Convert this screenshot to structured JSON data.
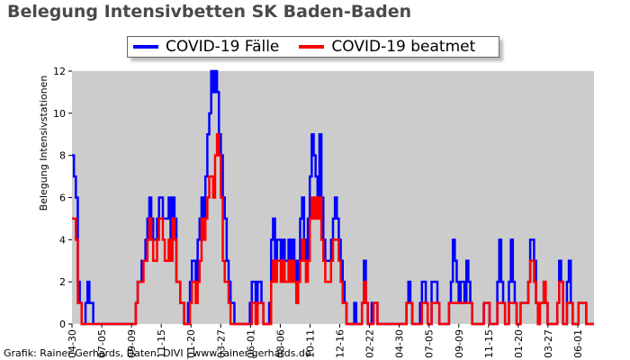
{
  "chart_data": {
    "type": "line",
    "title": "Belegung Intensivbetten SK Baden-Baden",
    "ylabel": "Belegung Intensivstationen",
    "xlabel": "",
    "ylim": [
      0,
      12
    ],
    "yticks": [
      0,
      2,
      4,
      6,
      8,
      10,
      12
    ],
    "xticks": [
      "04-30",
      "07-05",
      "09-09",
      "11-15",
      "01-20",
      "03-27",
      "06-01",
      "08-06",
      "10-11",
      "12-16",
      "02-22",
      "04-30",
      "07-05",
      "09-09",
      "11-15",
      "01-20",
      "03-27",
      "06-01"
    ],
    "grid": false,
    "background": "#cccccc",
    "legend_position": "top-center",
    "series": [
      {
        "name": "COVID-19 Fälle",
        "color": "#0000ff",
        "values": [
          8,
          7,
          6,
          2,
          1,
          0,
          0,
          1,
          2,
          1,
          1,
          0,
          0,
          0,
          0,
          0,
          0,
          0,
          0,
          0,
          0,
          0,
          0,
          0,
          0,
          0,
          0,
          0,
          0,
          0,
          0,
          0,
          0,
          1,
          2,
          2,
          3,
          3,
          4,
          5,
          6,
          5,
          4,
          4,
          5,
          6,
          6,
          5,
          5,
          5,
          6,
          4,
          6,
          5,
          2,
          2,
          1,
          1,
          0,
          0,
          1,
          2,
          3,
          3,
          2,
          4,
          5,
          6,
          5,
          7,
          9,
          10,
          12,
          11,
          12,
          11,
          9,
          8,
          6,
          5,
          3,
          2,
          1,
          1,
          0,
          0,
          0,
          0,
          0,
          0,
          0,
          0,
          1,
          2,
          2,
          1,
          2,
          2,
          1,
          0,
          0,
          0,
          1,
          4,
          5,
          3,
          4,
          4,
          3,
          4,
          3,
          3,
          4,
          3,
          4,
          3,
          2,
          3,
          5,
          6,
          4,
          3,
          5,
          7,
          9,
          8,
          7,
          6,
          9,
          6,
          4,
          3,
          3,
          3,
          4,
          5,
          6,
          5,
          4,
          3,
          2,
          1,
          0,
          0,
          0,
          0,
          1,
          0,
          0,
          0,
          1,
          3,
          1,
          0,
          0,
          1,
          1,
          1,
          0,
          0,
          0,
          0,
          0,
          0,
          0,
          0,
          0,
          0,
          0,
          0,
          0,
          0,
          0,
          1,
          2,
          1,
          0,
          0,
          0,
          0,
          1,
          2,
          2,
          1,
          0,
          0,
          2,
          2,
          2,
          1,
          0,
          0,
          0,
          0,
          0,
          1,
          2,
          4,
          3,
          2,
          1,
          2,
          2,
          1,
          3,
          2,
          1,
          0,
          0,
          0,
          0,
          0,
          0,
          1,
          1,
          1,
          0,
          0,
          0,
          0,
          2,
          4,
          2,
          1,
          0,
          0,
          2,
          4,
          2,
          1,
          0,
          0,
          1,
          1,
          1,
          1,
          2,
          4,
          4,
          3,
          1,
          0,
          1,
          1,
          2,
          1,
          0,
          0,
          0,
          0,
          0,
          1,
          3,
          2,
          0,
          0,
          2,
          3,
          1,
          0,
          0,
          0,
          1,
          1,
          1,
          1,
          0,
          0,
          0,
          0
        ]
      },
      {
        "name": "COVID-19 beatmet",
        "color": "#ff0000",
        "values": [
          5,
          5,
          4,
          1,
          1,
          0,
          0,
          0,
          0,
          0,
          0,
          0,
          0,
          0,
          0,
          0,
          0,
          0,
          0,
          0,
          0,
          0,
          0,
          0,
          0,
          0,
          0,
          0,
          0,
          0,
          0,
          0,
          0,
          1,
          2,
          2,
          2,
          3,
          3,
          4,
          5,
          4,
          3,
          3,
          4,
          5,
          5,
          4,
          3,
          3,
          4,
          3,
          5,
          4,
          2,
          2,
          1,
          1,
          0,
          0,
          0,
          1,
          2,
          2,
          1,
          2,
          3,
          5,
          4,
          5,
          6,
          7,
          7,
          6,
          8,
          9,
          8,
          6,
          3,
          2,
          2,
          1,
          0,
          0,
          0,
          0,
          0,
          0,
          0,
          0,
          0,
          0,
          0,
          1,
          1,
          0,
          1,
          1,
          1,
          0,
          0,
          0,
          0,
          2,
          3,
          2,
          3,
          3,
          2,
          3,
          2,
          2,
          3,
          2,
          3,
          2,
          1,
          2,
          3,
          4,
          3,
          2,
          3,
          5,
          6,
          5,
          6,
          5,
          6,
          4,
          3,
          2,
          2,
          2,
          3,
          4,
          4,
          4,
          3,
          2,
          1,
          1,
          0,
          0,
          0,
          0,
          0,
          0,
          0,
          0,
          1,
          2,
          1,
          0,
          0,
          0,
          1,
          1,
          0,
          0,
          0,
          0,
          0,
          0,
          0,
          0,
          0,
          0,
          0,
          0,
          0,
          0,
          0,
          1,
          1,
          1,
          0,
          0,
          0,
          0,
          0,
          1,
          1,
          1,
          0,
          0,
          1,
          1,
          1,
          1,
          0,
          0,
          0,
          0,
          0,
          1,
          1,
          1,
          1,
          1,
          1,
          1,
          1,
          1,
          1,
          1,
          1,
          0,
          0,
          0,
          0,
          0,
          0,
          1,
          1,
          1,
          0,
          0,
          0,
          0,
          1,
          1,
          1,
          1,
          0,
          0,
          1,
          1,
          1,
          1,
          0,
          0,
          1,
          1,
          1,
          1,
          2,
          3,
          3,
          2,
          1,
          0,
          1,
          1,
          2,
          1,
          0,
          0,
          0,
          0,
          0,
          1,
          2,
          2,
          0,
          0,
          1,
          1,
          1,
          0,
          0,
          0,
          1,
          1,
          1,
          1,
          0,
          0,
          0,
          0
        ]
      }
    ]
  },
  "credit": "Grafik: Rainer Gerhards, Daten: DIVI | www.rainer-gerhards.de"
}
